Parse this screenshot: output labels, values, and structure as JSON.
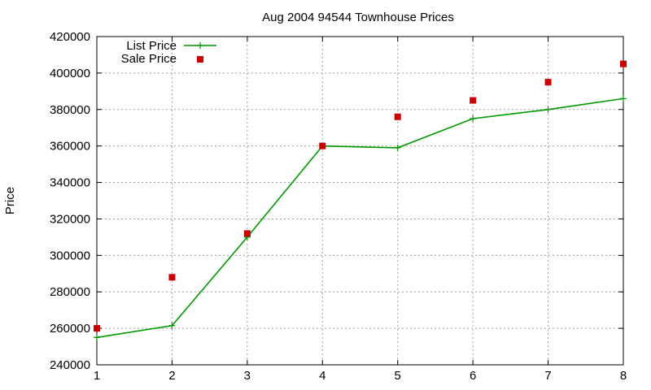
{
  "chart_data": {
    "type": "line",
    "title": "Aug 2004 94544 Townhouse Prices",
    "xlabel": "",
    "ylabel": "Price",
    "x": [
      1,
      2,
      3,
      4,
      5,
      6,
      7,
      8
    ],
    "xlim": [
      1,
      8
    ],
    "ylim": [
      240000,
      420000
    ],
    "xticks": [
      1,
      2,
      3,
      4,
      5,
      6,
      7,
      8
    ],
    "yticks": [
      240000,
      260000,
      280000,
      300000,
      320000,
      340000,
      360000,
      380000,
      400000,
      420000
    ],
    "grid": true,
    "legend_position": "top-left",
    "series": [
      {
        "name": "List Price",
        "style": "lines+points",
        "marker": "plus",
        "color": "#009900",
        "values": [
          255000,
          261500,
          310000,
          360000,
          359000,
          375000,
          380000,
          386000
        ]
      },
      {
        "name": "Sale Price",
        "style": "points",
        "marker": "square",
        "color": "#cc0000",
        "values": [
          260000,
          288000,
          312000,
          360000,
          376000,
          385000,
          395000,
          405000
        ]
      }
    ]
  }
}
